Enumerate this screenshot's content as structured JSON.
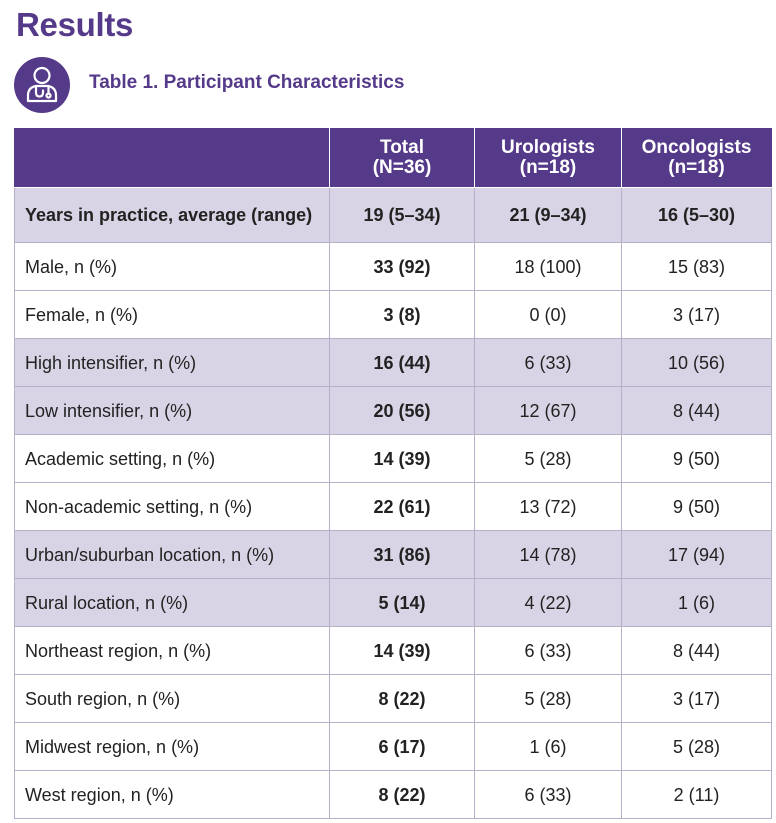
{
  "heading": "Results",
  "table_caption": "Table 1. Participant Characteristics",
  "icon": "doctor-stethoscope-icon",
  "colors": {
    "brand_purple": "#553a8a",
    "row_shading": "#d9d4e5",
    "border": "#b7aec7"
  },
  "table": {
    "headers": [
      {
        "line1": "",
        "line2": ""
      },
      {
        "line1": "Total",
        "line2": "(N=36)"
      },
      {
        "line1": "Urologists",
        "line2": "(n=18)"
      },
      {
        "line1": "Oncologists",
        "line2": "(n=18)"
      }
    ],
    "rows": [
      {
        "label": "Years in practice, average (range)",
        "total": "19 (5–34)",
        "urologists": "21 (9–34)",
        "oncologists": "16 (5–30)"
      },
      {
        "label": "Male, n (%)",
        "total": "33 (92)",
        "urologists": "18 (100)",
        "oncologists": "15 (83)"
      },
      {
        "label": "Female, n (%)",
        "total": "3 (8)",
        "urologists": "0 (0)",
        "oncologists": "3 (17)"
      },
      {
        "label": "High intensifier, n (%)",
        "total": "16 (44)",
        "urologists": "6 (33)",
        "oncologists": "10 (56)"
      },
      {
        "label": "Low intensifier, n (%)",
        "total": "20 (56)",
        "urologists": "12 (67)",
        "oncologists": "8 (44)"
      },
      {
        "label": "Academic setting, n (%)",
        "total": "14 (39)",
        "urologists": "5 (28)",
        "oncologists": "9 (50)"
      },
      {
        "label": "Non-academic setting, n (%)",
        "total": "22 (61)",
        "urologists": "13 (72)",
        "oncologists": "9 (50)"
      },
      {
        "label": "Urban/suburban location, n (%)",
        "total": "31 (86)",
        "urologists": "14 (78)",
        "oncologists": "17 (94)"
      },
      {
        "label": "Rural location, n (%)",
        "total": "5 (14)",
        "urologists": "4 (22)",
        "oncologists": "1 (6)"
      },
      {
        "label": "Northeast region, n (%)",
        "total": "14 (39)",
        "urologists": "6 (33)",
        "oncologists": "8 (44)"
      },
      {
        "label": "South region, n (%)",
        "total": "8 (22)",
        "urologists": "5 (28)",
        "oncologists": "3 (17)"
      },
      {
        "label": "Midwest region, n (%)",
        "total": "6 (17)",
        "urologists": "1 (6)",
        "oncologists": "5 (28)"
      },
      {
        "label": "West region, n (%)",
        "total": "8 (22)",
        "urologists": "6 (33)",
        "oncologists": "2 (11)"
      }
    ]
  }
}
